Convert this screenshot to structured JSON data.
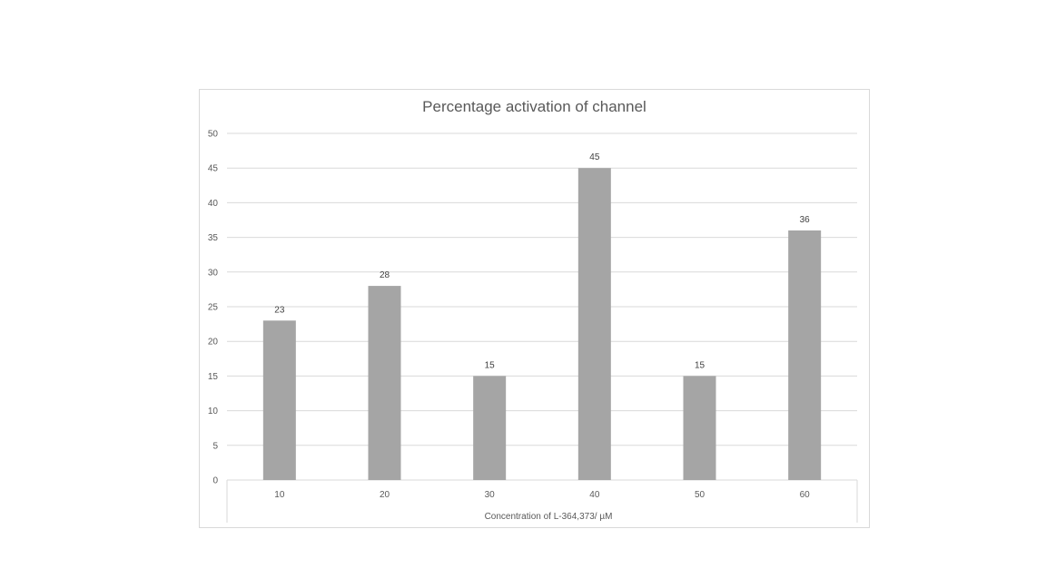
{
  "chart_data": {
    "type": "bar",
    "title": "Percentage activation of channel",
    "xlabel": "Concentration of L-364,373/ µM",
    "ylabel": "",
    "categories": [
      "10",
      "20",
      "30",
      "40",
      "50",
      "60"
    ],
    "values": [
      23,
      28,
      15,
      45,
      15,
      36
    ],
    "ylim": [
      0,
      50
    ],
    "yticks": [
      0,
      5,
      10,
      15,
      20,
      25,
      30,
      35,
      40,
      45,
      50
    ],
    "grid": true,
    "legend": "none",
    "bar_color": "#a5a5a5",
    "grid_color": "#d9d9d9"
  }
}
